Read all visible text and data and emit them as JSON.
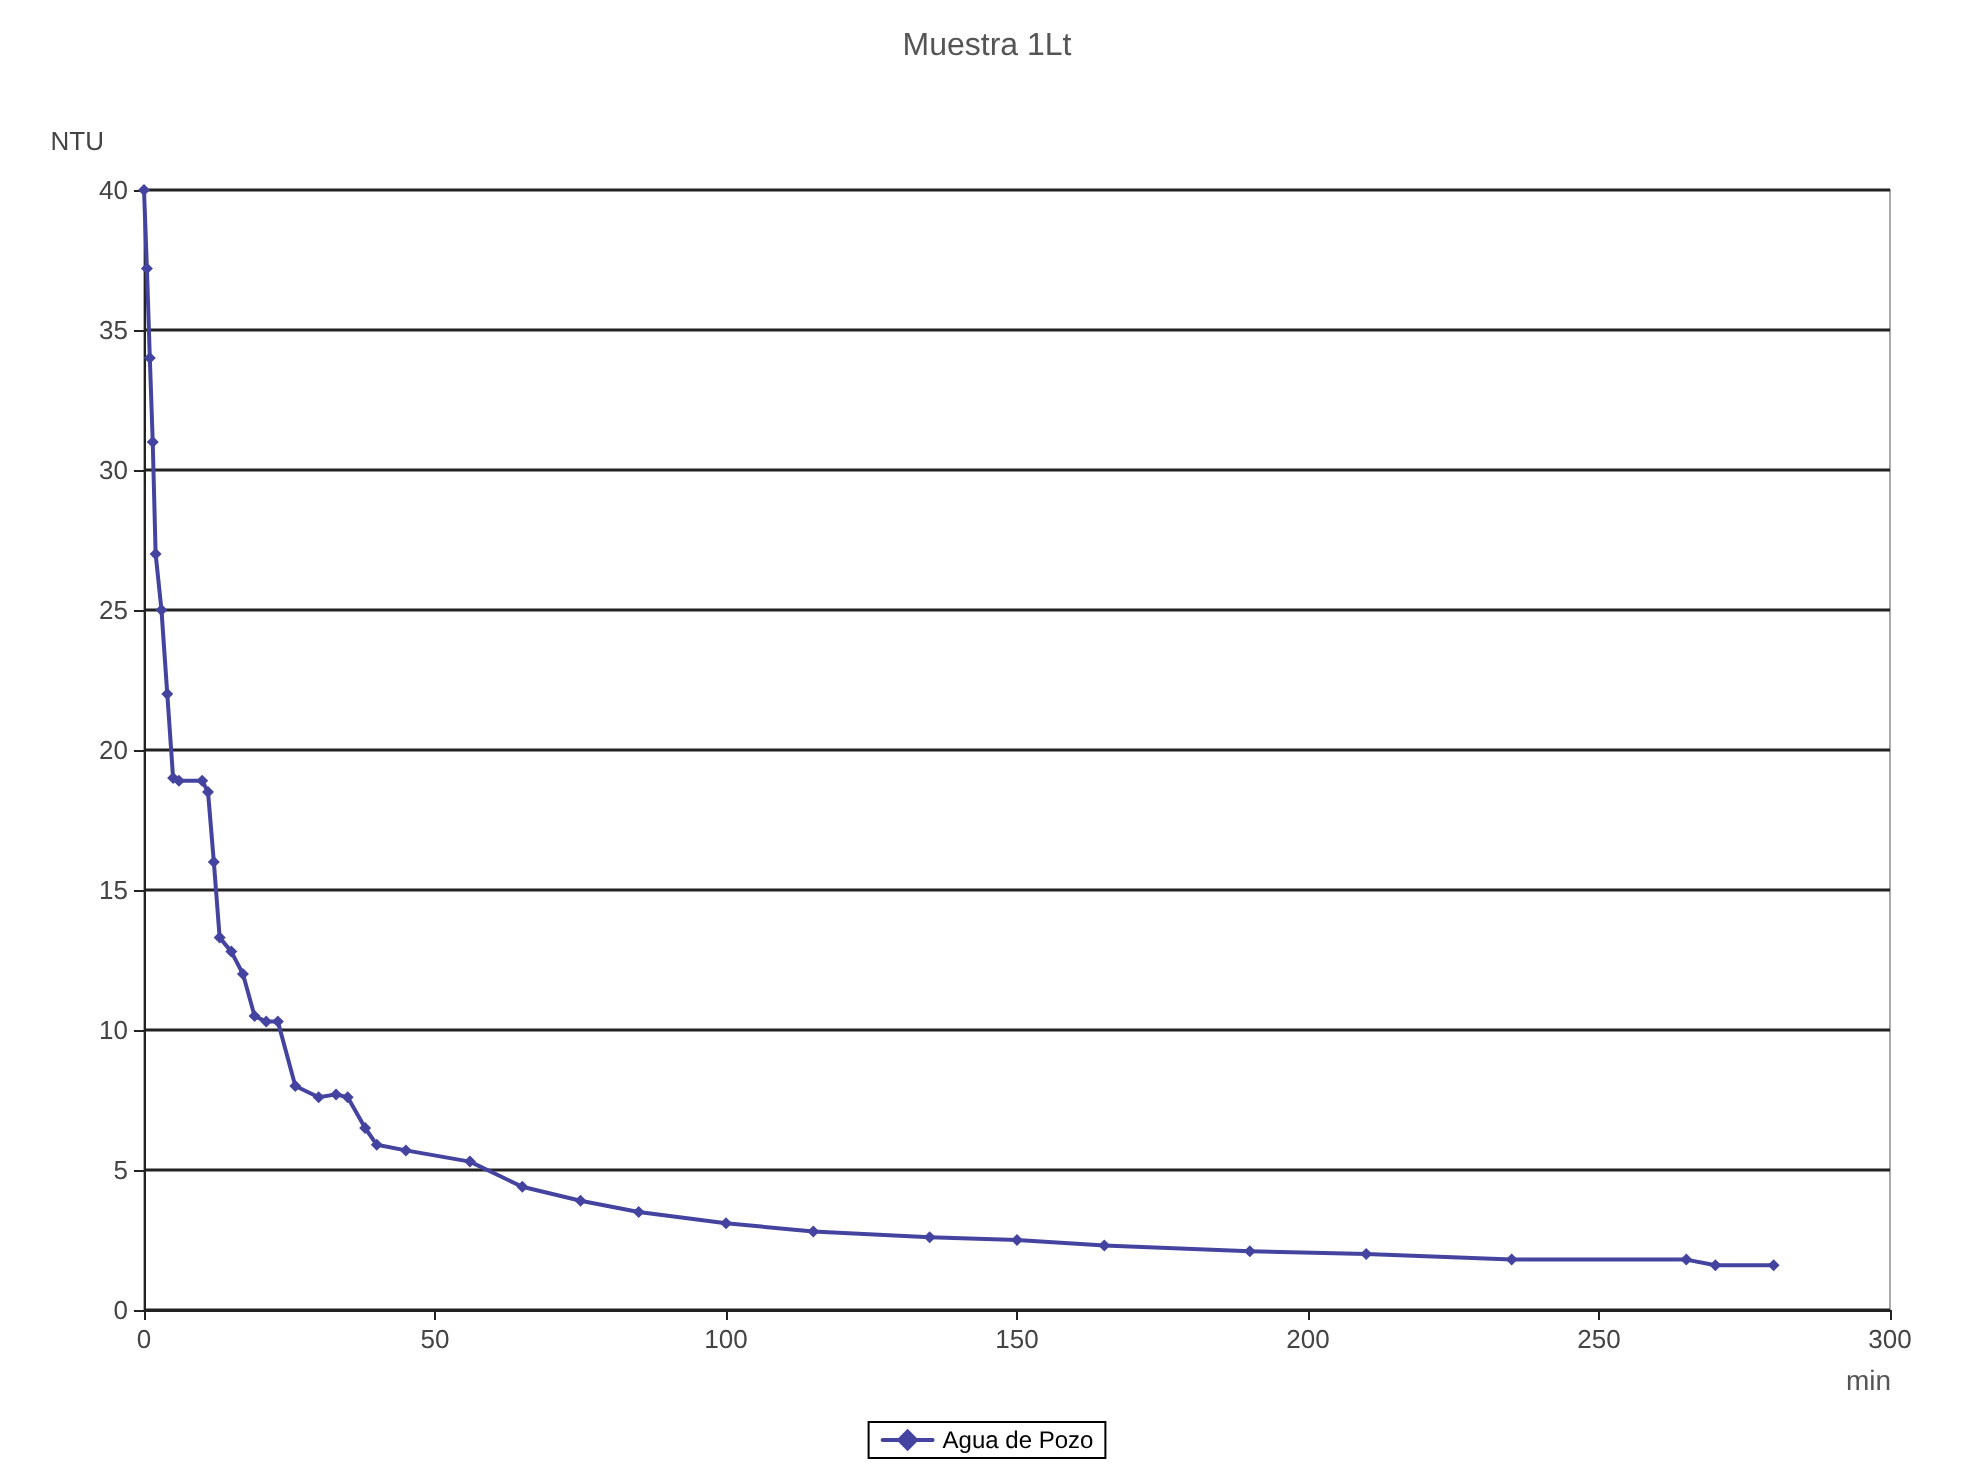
{
  "chart_data": {
    "type": "line",
    "title": "Muestra 1Lt",
    "xlabel": "min",
    "ylabel": "NTU",
    "x": [
      0,
      0.5,
      1,
      1.5,
      2,
      3,
      4,
      5,
      6,
      10,
      11,
      12,
      13,
      15,
      17,
      19,
      21,
      23,
      26,
      30,
      33,
      35,
      38,
      40,
      45,
      56,
      65,
      75,
      85,
      100,
      115,
      135,
      150,
      165,
      190,
      210,
      235,
      265,
      270,
      280
    ],
    "series": [
      {
        "name": "Agua de Pozo",
        "color": "#4444a0",
        "values": [
          40,
          37.2,
          34,
          31,
          27,
          25,
          22,
          19,
          18.9,
          18.9,
          18.5,
          16,
          13.3,
          12.8,
          12,
          10.5,
          10.3,
          10.3,
          8,
          7.6,
          7.7,
          7.6,
          6.5,
          5.9,
          5.7,
          5.3,
          4.4,
          3.9,
          3.5,
          3.1,
          2.8,
          2.6,
          2.5,
          2.3,
          2.1,
          2,
          1.8,
          1.8,
          1.6,
          1.6
        ]
      }
    ],
    "xlim": [
      0,
      300
    ],
    "xticks": [
      0,
      50,
      100,
      150,
      200,
      250,
      300
    ],
    "ylim": [
      0,
      40
    ],
    "yticks": [
      0,
      5,
      10,
      15,
      20,
      25,
      30,
      35,
      40
    ],
    "grid": "y",
    "legend": "bottom",
    "marker": "diamond"
  }
}
